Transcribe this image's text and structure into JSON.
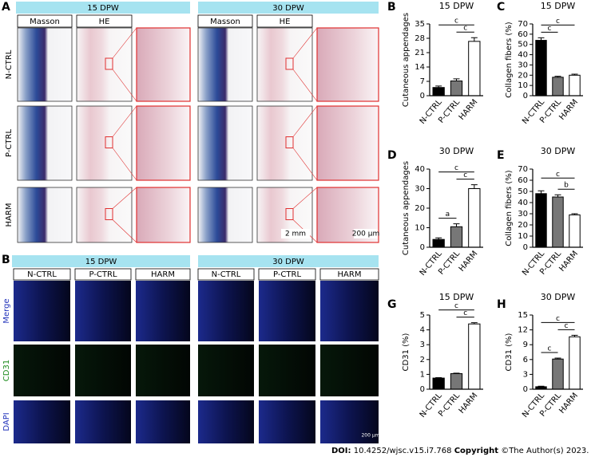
{
  "figure": {
    "panel_a": {
      "label": "A",
      "groups": [
        "15 DPW",
        "30 DPW"
      ],
      "columns": [
        "Masson",
        "HE"
      ],
      "rows": [
        "N-CTRL",
        "P-CTRL",
        "HARM"
      ],
      "scale_bars": [
        "2 mm",
        "200 μm"
      ]
    },
    "panel_b": {
      "label": "B",
      "groups": [
        "15 DPW",
        "30 DPW"
      ],
      "columns": [
        "N-CTRL",
        "P-CTRL",
        "HARM"
      ],
      "rows": [
        "Merge",
        "CD31",
        "DAPI"
      ],
      "scale_bar": "200 μm"
    }
  },
  "chart_data": [
    {
      "type": "bar",
      "panel": "B",
      "title": "15 DPW",
      "y_label": "Cutaneous appendages",
      "categories": [
        "N-CTRL",
        "P-CTRL",
        "HARM"
      ],
      "values": [
        4,
        7.2,
        26.5
      ],
      "errors": [
        0.7,
        1,
        1.8
      ],
      "colors": [
        "#000000",
        "#777777",
        "#ffffff"
      ],
      "ylim": [
        0,
        35
      ],
      "yticks": [
        0,
        7,
        14,
        21,
        28,
        35
      ],
      "significance": [
        {
          "from": 0,
          "to": 2,
          "label": "c"
        },
        {
          "from": 1,
          "to": 2,
          "label": "c"
        }
      ]
    },
    {
      "type": "bar",
      "panel": "C",
      "title": "15 DPW",
      "y_label": "Collagen fibers (%)",
      "categories": [
        "N-CTRL",
        "P-CTRL",
        "HARM"
      ],
      "values": [
        54,
        18,
        20
      ],
      "errors": [
        2.5,
        1,
        1
      ],
      "colors": [
        "#000000",
        "#777777",
        "#ffffff"
      ],
      "ylim": [
        0,
        70
      ],
      "yticks": [
        0,
        10,
        20,
        30,
        40,
        50,
        60,
        70
      ],
      "significance": [
        {
          "from": 0,
          "to": 2,
          "label": "c"
        },
        {
          "from": 0,
          "to": 1,
          "label": "c"
        }
      ]
    },
    {
      "type": "bar",
      "panel": "D",
      "title": "30 DPW",
      "y_label": "Cutaneous appendages",
      "categories": [
        "N-CTRL",
        "P-CTRL",
        "HARM"
      ],
      "values": [
        4,
        10.5,
        30
      ],
      "errors": [
        0.8,
        1.5,
        2
      ],
      "colors": [
        "#000000",
        "#777777",
        "#ffffff"
      ],
      "ylim": [
        0,
        40
      ],
      "yticks": [
        0,
        10,
        20,
        30,
        40
      ],
      "significance": [
        {
          "from": 0,
          "to": 1,
          "label": "a"
        },
        {
          "from": 0,
          "to": 2,
          "label": "c"
        },
        {
          "from": 1,
          "to": 2,
          "label": "c"
        }
      ]
    },
    {
      "type": "bar",
      "panel": "E",
      "title": "30 DPW",
      "y_label": "Collagen fibers (%)",
      "categories": [
        "N-CTRL",
        "P-CTRL",
        "HARM"
      ],
      "values": [
        48,
        45,
        29
      ],
      "errors": [
        2.5,
        2,
        1
      ],
      "colors": [
        "#000000",
        "#777777",
        "#ffffff"
      ],
      "ylim": [
        0,
        70
      ],
      "yticks": [
        0,
        10,
        20,
        30,
        40,
        50,
        60,
        70
      ],
      "significance": [
        {
          "from": 0,
          "to": 2,
          "label": "c"
        },
        {
          "from": 1,
          "to": 2,
          "label": "b"
        }
      ]
    },
    {
      "type": "bar",
      "panel": "G",
      "title": "15 DPW",
      "y_label": "CD31 (%)",
      "categories": [
        "N-CTRL",
        "P-CTRL",
        "HARM"
      ],
      "values": [
        0.75,
        1.05,
        4.4
      ],
      "errors": [
        0.03,
        0.03,
        0.08
      ],
      "colors": [
        "#000000",
        "#777777",
        "#ffffff"
      ],
      "ylim": [
        0,
        5
      ],
      "yticks": [
        0,
        1,
        2,
        3,
        4,
        5
      ],
      "significance": [
        {
          "from": 0,
          "to": 2,
          "label": "c"
        },
        {
          "from": 1,
          "to": 2,
          "label": "c"
        }
      ]
    },
    {
      "type": "bar",
      "panel": "H",
      "title": "30 DPW",
      "y_label": "CD31 (%)",
      "categories": [
        "N-CTRL",
        "P-CTRL",
        "HARM"
      ],
      "values": [
        0.5,
        6.1,
        10.6
      ],
      "errors": [
        0.1,
        0.2,
        0.3
      ],
      "colors": [
        "#000000",
        "#777777",
        "#ffffff"
      ],
      "ylim": [
        0,
        15
      ],
      "yticks": [
        0,
        3,
        6,
        9,
        12,
        15
      ],
      "significance": [
        {
          "from": 0,
          "to": 1,
          "label": "c"
        },
        {
          "from": 0,
          "to": 2,
          "label": "c"
        },
        {
          "from": 1,
          "to": 2,
          "label": "c"
        }
      ]
    }
  ],
  "footer": {
    "doi_label": "DOI:",
    "doi": "10.4252/wjsc.v15.i7.768",
    "copyright_label": "Copyright",
    "copyright": "©The Author(s) 2023."
  }
}
